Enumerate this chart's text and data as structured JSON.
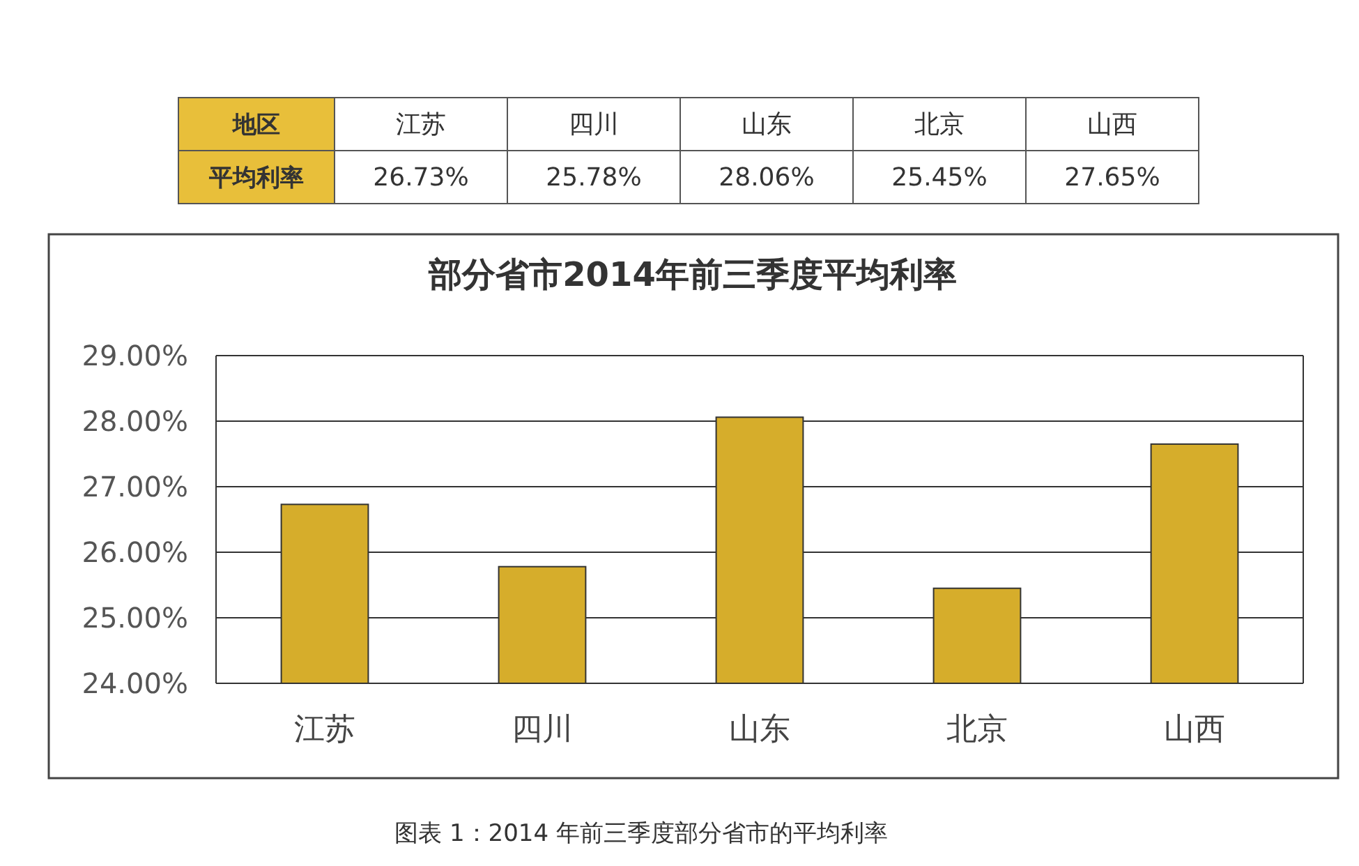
{
  "chart_data": {
    "type": "bar",
    "title": "部分省市2014年前三季度平均利率",
    "categories": [
      "江苏",
      "四川",
      "山东",
      "北京",
      "山西"
    ],
    "values": [
      26.73,
      25.78,
      28.06,
      25.45,
      27.65
    ],
    "value_labels": [
      "26.73%",
      "25.78%",
      "28.06%",
      "25.45%",
      "27.65%"
    ],
    "color": "#d6ad2b",
    "ylim": [
      24,
      29
    ],
    "yticks": [
      {
        "value": 24,
        "label": "24.00%"
      },
      {
        "value": 25,
        "label": "25.00%"
      },
      {
        "value": 26,
        "label": "26.00%"
      },
      {
        "value": 27,
        "label": "27.00%"
      },
      {
        "value": 28,
        "label": "28.00%"
      },
      {
        "value": 29,
        "label": "29.00%"
      }
    ],
    "grid": "y",
    "annotations": [
      "地区",
      "平均利率",
      "图表 1：2014 年前三季度部分省市的平均利率"
    ]
  }
}
